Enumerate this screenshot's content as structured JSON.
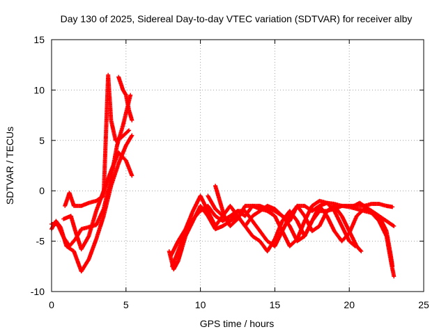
{
  "chart_data": {
    "type": "scatter",
    "title": "Day 130 of 2025, Sidereal Day-to-day VTEC variation (SDTVAR) for receiver alby",
    "xlabel": "GPS time / hours",
    "ylabel": "SDTVAR / TECUs",
    "xlim": [
      0,
      25
    ],
    "ylim": [
      -10,
      15
    ],
    "xticks": [
      0,
      5,
      10,
      15,
      20,
      25
    ],
    "yticks": [
      -10,
      -5,
      0,
      5,
      10,
      15
    ],
    "grid": true,
    "marker": "+",
    "color": "#ff0000",
    "series": [
      {
        "name": "track-1",
        "points": [
          [
            0.0,
            -3.8
          ],
          [
            0.3,
            -3.0
          ],
          [
            0.6,
            -3.6
          ],
          [
            1.0,
            -5.5
          ],
          [
            1.5,
            -6.0
          ],
          [
            2.0,
            -8.0
          ],
          [
            2.5,
            -6.8
          ],
          [
            3.0,
            -4.8
          ],
          [
            3.5,
            -2.5
          ],
          [
            4.0,
            0.5
          ],
          [
            4.5,
            2.7
          ],
          [
            5.0,
            4.5
          ],
          [
            5.4,
            5.5
          ]
        ]
      },
      {
        "name": "track-2",
        "points": [
          [
            0.0,
            -3.3
          ],
          [
            0.4,
            -3.3
          ],
          [
            0.8,
            -4.6
          ],
          [
            1.2,
            -5.5
          ],
          [
            1.6,
            -4.8
          ],
          [
            2.0,
            -3.8
          ],
          [
            2.5,
            -3.6
          ],
          [
            3.0,
            -3.4
          ],
          [
            3.5,
            -1.8
          ],
          [
            4.0,
            1.3
          ],
          [
            4.4,
            4.5
          ],
          [
            4.8,
            6.5
          ],
          [
            5.3,
            9.5
          ]
        ]
      },
      {
        "name": "track-3",
        "points": [
          [
            0.8,
            -2.8
          ],
          [
            1.3,
            -2.5
          ],
          [
            1.6,
            -4.0
          ],
          [
            2.0,
            -5.8
          ],
          [
            2.5,
            -4.5
          ],
          [
            3.0,
            -2.0
          ],
          [
            3.5,
            0.0
          ],
          [
            4.0,
            2.0
          ],
          [
            4.5,
            3.8
          ],
          [
            5.0,
            3.0
          ],
          [
            5.4,
            1.5
          ]
        ]
      },
      {
        "name": "track-4",
        "points": [
          [
            0.9,
            -1.5
          ],
          [
            1.2,
            -0.2
          ],
          [
            1.5,
            -1.5
          ],
          [
            2.0,
            -1.5
          ],
          [
            2.5,
            -1.2
          ],
          [
            3.0,
            -1.0
          ],
          [
            3.5,
            -0.5
          ],
          [
            3.8,
            11.5
          ],
          [
            4.0,
            7.0
          ],
          [
            4.3,
            5.0
          ],
          [
            4.7,
            5.3
          ],
          [
            5.2,
            6.0
          ]
        ]
      },
      {
        "name": "track-5",
        "points": [
          [
            4.5,
            11.3
          ],
          [
            4.8,
            10.0
          ],
          [
            5.0,
            9.5
          ],
          [
            5.2,
            8.0
          ],
          [
            5.4,
            7.0
          ]
        ]
      },
      {
        "name": "track-6",
        "points": [
          [
            7.9,
            -6.0
          ],
          [
            8.2,
            -7.8
          ],
          [
            8.5,
            -7.0
          ],
          [
            9.0,
            -4.5
          ],
          [
            9.5,
            -3.0
          ],
          [
            10.0,
            -1.5
          ],
          [
            10.5,
            -2.5
          ],
          [
            11.0,
            -3.8
          ],
          [
            11.5,
            -3.5
          ],
          [
            12.0,
            -3.0
          ],
          [
            12.5,
            -2.5
          ],
          [
            13.0,
            -3.5
          ],
          [
            13.5,
            -4.5
          ],
          [
            14.0,
            -5.0
          ],
          [
            14.5,
            -6.0
          ],
          [
            15.0,
            -4.8
          ],
          [
            15.5,
            -3.0
          ],
          [
            16.0,
            -2.0
          ],
          [
            16.5,
            -3.0
          ],
          [
            17.0,
            -4.5
          ],
          [
            17.5,
            -3.0
          ],
          [
            18.0,
            -1.5
          ]
        ]
      },
      {
        "name": "track-7",
        "points": [
          [
            8.0,
            -6.5
          ],
          [
            8.5,
            -5.0
          ],
          [
            9.0,
            -3.8
          ],
          [
            9.5,
            -2.0
          ],
          [
            10.0,
            -0.5
          ],
          [
            10.5,
            -2.0
          ],
          [
            11.0,
            -3.5
          ],
          [
            11.5,
            -2.5
          ],
          [
            12.0,
            -1.5
          ],
          [
            12.5,
            -2.5
          ],
          [
            13.0,
            -3.5
          ],
          [
            13.5,
            -2.5
          ],
          [
            14.0,
            -2.0
          ],
          [
            14.5,
            -1.5
          ],
          [
            15.0,
            -1.8
          ],
          [
            15.5,
            -2.5
          ],
          [
            16.0,
            -3.0
          ],
          [
            16.5,
            -1.5
          ],
          [
            17.0,
            -1.5
          ],
          [
            17.5,
            -2.0
          ],
          [
            18.0,
            -1.5
          ],
          [
            18.5,
            -1.2
          ],
          [
            19.0,
            -1.3
          ],
          [
            19.5,
            -1.5
          ],
          [
            20.0,
            -1.5
          ],
          [
            20.5,
            -1.5
          ],
          [
            21.0,
            -1.5
          ],
          [
            21.5,
            -1.3
          ],
          [
            22.0,
            -1.3
          ],
          [
            22.5,
            -1.5
          ],
          [
            22.9,
            -1.6
          ]
        ]
      },
      {
        "name": "track-8",
        "points": [
          [
            8.1,
            -7.5
          ],
          [
            8.5,
            -6.0
          ],
          [
            9.0,
            -4.0
          ],
          [
            9.5,
            -2.8
          ],
          [
            10.0,
            -2.0
          ],
          [
            10.5,
            -1.5
          ],
          [
            11.0,
            -2.5
          ],
          [
            11.5,
            -3.0
          ],
          [
            12.0,
            -2.5
          ],
          [
            12.5,
            -2.0
          ],
          [
            13.0,
            -2.0
          ],
          [
            13.5,
            -3.0
          ],
          [
            14.0,
            -4.0
          ],
          [
            14.5,
            -5.0
          ],
          [
            15.0,
            -5.5
          ],
          [
            15.5,
            -4.0
          ],
          [
            16.0,
            -2.5
          ],
          [
            16.5,
            -1.5
          ],
          [
            17.0,
            -2.5
          ],
          [
            17.5,
            -4.0
          ],
          [
            18.0,
            -3.5
          ],
          [
            18.5,
            -2.0
          ],
          [
            19.0,
            -1.5
          ],
          [
            19.5,
            -2.5
          ],
          [
            20.0,
            -4.0
          ],
          [
            20.5,
            -5.5
          ],
          [
            20.8,
            -6.0
          ]
        ]
      },
      {
        "name": "track-9",
        "points": [
          [
            10.5,
            -0.5
          ],
          [
            11.0,
            -1.8
          ],
          [
            11.5,
            -2.5
          ],
          [
            12.0,
            -3.0
          ],
          [
            12.5,
            -2.0
          ],
          [
            13.0,
            -2.5
          ],
          [
            13.5,
            -1.5
          ],
          [
            14.0,
            -1.8
          ],
          [
            14.5,
            -2.0
          ],
          [
            15.0,
            -2.5
          ],
          [
            15.5,
            -4.0
          ],
          [
            16.0,
            -5.5
          ],
          [
            16.5,
            -4.8
          ],
          [
            17.0,
            -3.0
          ],
          [
            17.5,
            -1.5
          ],
          [
            18.0,
            -1.0
          ],
          [
            18.5,
            -1.2
          ],
          [
            19.0,
            -2.0
          ],
          [
            19.5,
            -3.5
          ],
          [
            20.0,
            -5.0
          ],
          [
            20.4,
            -5.5
          ]
        ]
      },
      {
        "name": "track-10",
        "points": [
          [
            11.0,
            0.5
          ],
          [
            11.3,
            -1.0
          ],
          [
            11.6,
            -2.5
          ],
          [
            12.0,
            -3.5
          ],
          [
            12.5,
            -2.8
          ],
          [
            13.0,
            -1.5
          ],
          [
            13.5,
            -1.5
          ],
          [
            14.0,
            -1.5
          ],
          [
            14.5,
            -1.8
          ],
          [
            15.0,
            -2.0
          ],
          [
            15.5,
            -2.5
          ],
          [
            16.0,
            -3.5
          ],
          [
            16.5,
            -5.0
          ],
          [
            17.0,
            -4.5
          ],
          [
            17.5,
            -3.0
          ],
          [
            18.0,
            -2.0
          ],
          [
            18.5,
            -2.0
          ],
          [
            19.0,
            -1.8
          ],
          [
            19.5,
            -1.5
          ],
          [
            20.0,
            -1.6
          ],
          [
            20.5,
            -1.8
          ],
          [
            21.0,
            -2.0
          ],
          [
            21.5,
            -2.2
          ],
          [
            22.0,
            -3.0
          ],
          [
            22.5,
            -4.5
          ],
          [
            22.8,
            -7.0
          ],
          [
            23.0,
            -8.5
          ]
        ]
      },
      {
        "name": "track-11",
        "points": [
          [
            18.0,
            -1.5
          ],
          [
            18.5,
            -2.5
          ],
          [
            19.0,
            -4.0
          ],
          [
            19.5,
            -5.0
          ],
          [
            20.0,
            -4.2
          ],
          [
            20.5,
            -2.5
          ],
          [
            21.0,
            -1.8
          ],
          [
            21.5,
            -2.0
          ],
          [
            22.0,
            -2.5
          ],
          [
            22.5,
            -3.0
          ],
          [
            23.0,
            -3.5
          ]
        ]
      },
      {
        "name": "track-12",
        "points": [
          [
            20.3,
            -1.5
          ],
          [
            20.7,
            -1.2
          ],
          [
            21.1,
            -1.6
          ],
          [
            21.5,
            -2.0
          ],
          [
            22.0,
            -2.5
          ],
          [
            22.5,
            -4.0
          ],
          [
            22.8,
            -6.5
          ],
          [
            22.9,
            -7.5
          ]
        ]
      }
    ]
  }
}
